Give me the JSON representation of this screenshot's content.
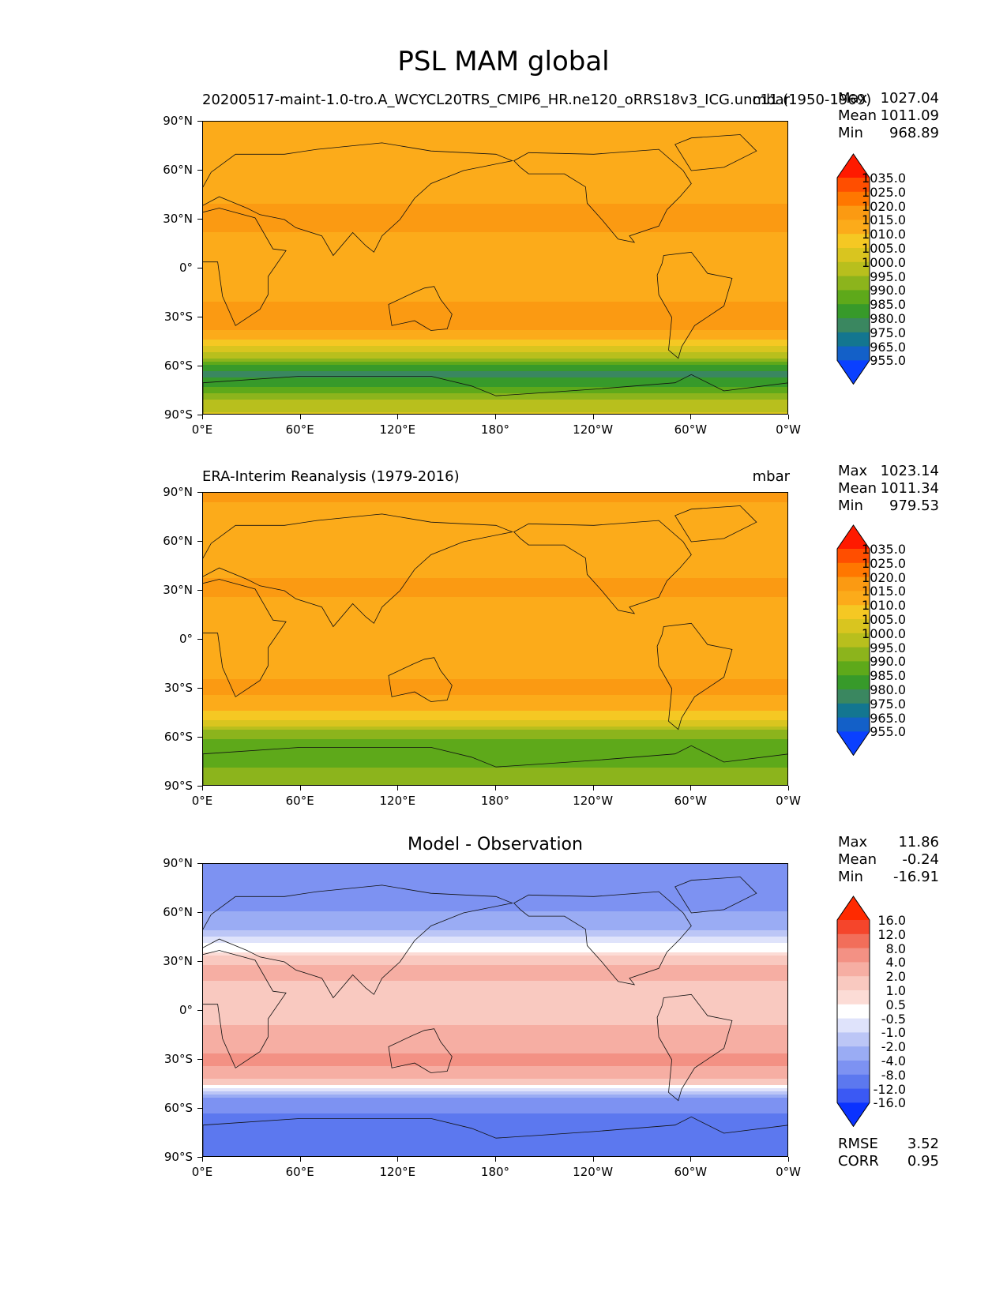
{
  "figure_title": "PSL MAM global",
  "chart_data": [
    {
      "type": "heatmap",
      "panel": "model",
      "title_left": "20200517-maint-1.0-tro.A_WCYCL20TRS_CMIP6_HR.ne120_oRRS18v3_ICG.unc11 (1950-1969)",
      "title_right": "mbar",
      "stats": {
        "max_label": "Max",
        "max": "1027.04",
        "mean_label": "Mean",
        "mean": "1011.09",
        "min_label": "Min",
        "min": "968.89"
      },
      "xlabel": "",
      "ylabel": "",
      "x_ticks": [
        "0°E",
        "60°E",
        "120°E",
        "180°",
        "120°W",
        "60°W",
        "0°W"
      ],
      "y_ticks": [
        "90°N",
        "60°N",
        "30°N",
        "0°",
        "30°S",
        "60°S",
        "90°S"
      ],
      "xlim": [
        0,
        360
      ],
      "ylim": [
        -90,
        90
      ],
      "latitude_profile": {
        "lat": [
          90,
          75,
          60,
          45,
          30,
          15,
          0,
          -15,
          -30,
          -40,
          -50,
          -58,
          -64,
          -70,
          -78,
          -90
        ],
        "psl": [
          1013,
          1012,
          1010,
          1014,
          1017,
          1013,
          1011,
          1013,
          1018,
          1014,
          1003,
          988,
          978,
          982,
          993,
          1002
        ]
      },
      "colorbar": {
        "levels": [
          "1035.0",
          "1025.0",
          "1020.0",
          "1015.0",
          "1010.0",
          "1005.0",
          "1000.0",
          "995.0",
          "990.0",
          "985.0",
          "980.0",
          "975.0",
          "965.0",
          "955.0"
        ],
        "colors": [
          "#ff1a00",
          "#ff4e00",
          "#ff7700",
          "#fb9a12",
          "#fcab1a",
          "#f5c823",
          "#d9c51f",
          "#b8bf1d",
          "#8cb41c",
          "#5ea91a",
          "#379a2a",
          "#3a8760",
          "#137690",
          "#1360c8",
          "#0a40ff"
        ]
      }
    },
    {
      "type": "heatmap",
      "panel": "observation",
      "title_left": "ERA-Interim Reanalysis (1979-2016)",
      "title_right": "mbar",
      "stats": {
        "max_label": "Max",
        "max": "1023.14",
        "mean_label": "Mean",
        "mean": "1011.34",
        "min_label": "Min",
        "min": "979.53"
      },
      "xlabel": "",
      "ylabel": "",
      "x_ticks": [
        "0°E",
        "60°E",
        "120°E",
        "180°",
        "120°W",
        "60°W",
        "0°W"
      ],
      "y_ticks": [
        "90°N",
        "60°N",
        "30°N",
        "0°",
        "30°S",
        "60°S",
        "90°S"
      ],
      "xlim": [
        0,
        360
      ],
      "ylim": [
        -90,
        90
      ],
      "latitude_profile": {
        "lat": [
          90,
          75,
          60,
          45,
          30,
          15,
          0,
          -15,
          -30,
          -40,
          -50,
          -58,
          -64,
          -70,
          -78,
          -90
        ],
        "psl": [
          1016,
          1013,
          1011,
          1014,
          1016,
          1012,
          1010,
          1013,
          1016,
          1013,
          1004,
          992,
          986,
          986,
          990,
          995
        ]
      },
      "colorbar": {
        "levels": [
          "1035.0",
          "1025.0",
          "1020.0",
          "1015.0",
          "1010.0",
          "1005.0",
          "1000.0",
          "995.0",
          "990.0",
          "985.0",
          "980.0",
          "975.0",
          "965.0",
          "955.0"
        ],
        "colors": [
          "#ff1a00",
          "#ff4e00",
          "#ff7700",
          "#fb9a12",
          "#fcab1a",
          "#f5c823",
          "#d9c51f",
          "#b8bf1d",
          "#8cb41c",
          "#5ea91a",
          "#379a2a",
          "#3a8760",
          "#137690",
          "#1360c8",
          "#0a40ff"
        ]
      }
    },
    {
      "type": "heatmap",
      "panel": "difference",
      "title_center": "Model - Observation",
      "stats": {
        "max_label": "Max",
        "max": "11.86",
        "mean_label": "Mean",
        "mean": "-0.24",
        "min_label": "Min",
        "min": "-16.91"
      },
      "extra_stats": {
        "rmse_label": "RMSE",
        "rmse": "3.52",
        "corr_label": "CORR",
        "corr": "0.95"
      },
      "xlabel": "",
      "ylabel": "",
      "x_ticks": [
        "0°E",
        "60°E",
        "120°E",
        "180°",
        "120°W",
        "60°W",
        "0°W"
      ],
      "y_ticks": [
        "90°N",
        "60°N",
        "30°N",
        "0°",
        "30°S",
        "60°S",
        "90°S"
      ],
      "xlim": [
        0,
        360
      ],
      "ylim": [
        -90,
        90
      ],
      "latitude_profile": {
        "lat": [
          90,
          75,
          60,
          50,
          42,
          35,
          25,
          10,
          0,
          -15,
          -30,
          -40,
          -46,
          -50,
          -55,
          -62,
          -70,
          -80,
          -90
        ],
        "diff": [
          -8,
          -6,
          -4,
          -2,
          -0.4,
          0.8,
          2.5,
          1.5,
          1.2,
          2.5,
          4.5,
          3,
          0.4,
          -1.5,
          -4.5,
          -8,
          -10,
          -9,
          -8
        ]
      },
      "colorbar": {
        "levels": [
          "16.0",
          "12.0",
          "8.0",
          "4.0",
          "2.0",
          "1.0",
          "0.5",
          "-0.5",
          "-1.0",
          "-2.0",
          "-4.0",
          "-8.0",
          "-12.0",
          "-16.0"
        ],
        "colors": [
          "#ff2a00",
          "#f5452b",
          "#f26e5a",
          "#f39184",
          "#f6aea3",
          "#f9c9c0",
          "#fcdcd6",
          "#ffffff",
          "#dfe3fb",
          "#bcc6f6",
          "#9aacf4",
          "#7d92f2",
          "#5c78ef",
          "#3b59f4",
          "#0a32ff"
        ]
      }
    }
  ]
}
